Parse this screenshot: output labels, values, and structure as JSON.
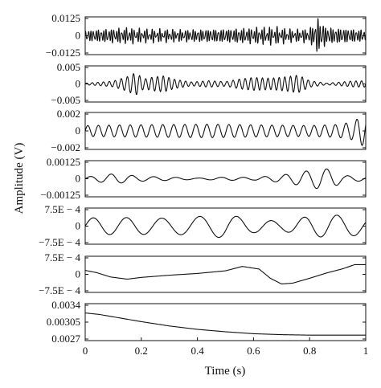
{
  "chart_data": {
    "type": "line",
    "title": "",
    "xlabel": "Time (s)",
    "ylabel": "Amplitude (V)",
    "x_ticks": [
      "0",
      "0.2",
      "0.4",
      "0.6",
      "0.8",
      "1"
    ],
    "xlim": [
      0,
      1
    ],
    "grid": false,
    "legend": "none",
    "panels": [
      {
        "ytick_labels": [
          "0.0125",
          "0",
          "−0.0125"
        ],
        "ytick_values": [
          0.0125,
          0,
          -0.0125
        ],
        "ylim": [
          -0.0125,
          0.0125
        ],
        "shape": "dense",
        "freq": 110,
        "envelope": [
          [
            0,
            0.28
          ],
          [
            0.15,
            0.4
          ],
          [
            0.2,
            0.34
          ],
          [
            0.35,
            0.3
          ],
          [
            0.5,
            0.34
          ],
          [
            0.67,
            0.44
          ],
          [
            0.75,
            0.3
          ],
          [
            0.8,
            0.35
          ],
          [
            0.83,
            0.9
          ],
          [
            0.86,
            0.42
          ],
          [
            0.95,
            0.34
          ],
          [
            1,
            0.3
          ]
        ]
      },
      {
        "ytick_labels": [
          "0.005",
          "0",
          "−0.005"
        ],
        "ytick_values": [
          0.005,
          0,
          -0.005
        ],
        "ylim": [
          -0.005,
          0.005
        ],
        "shape": "modulated",
        "freq": 48,
        "envelope": [
          [
            0,
            0.05
          ],
          [
            0.06,
            0.12
          ],
          [
            0.1,
            0.18
          ],
          [
            0.15,
            0.45
          ],
          [
            0.18,
            0.7
          ],
          [
            0.21,
            0.3
          ],
          [
            0.24,
            0.42
          ],
          [
            0.28,
            0.5
          ],
          [
            0.32,
            0.28
          ],
          [
            0.38,
            0.12
          ],
          [
            0.44,
            0.2
          ],
          [
            0.5,
            0.14
          ],
          [
            0.55,
            0.3
          ],
          [
            0.6,
            0.4
          ],
          [
            0.66,
            0.35
          ],
          [
            0.72,
            0.45
          ],
          [
            0.76,
            0.55
          ],
          [
            0.8,
            0.2
          ],
          [
            0.86,
            0.05
          ],
          [
            0.9,
            0.1
          ],
          [
            0.95,
            0.18
          ],
          [
            1,
            0.2
          ]
        ]
      },
      {
        "ytick_labels": [
          "0.002",
          "0",
          "−0.002"
        ],
        "ytick_values": [
          0.002,
          0,
          -0.002
        ],
        "ylim": [
          -0.002,
          0.002
        ],
        "shape": "tone",
        "freq": 26,
        "envelope": [
          [
            0,
            0.32
          ],
          [
            0.1,
            0.35
          ],
          [
            0.3,
            0.38
          ],
          [
            0.45,
            0.4
          ],
          [
            0.6,
            0.36
          ],
          [
            0.8,
            0.32
          ],
          [
            0.9,
            0.38
          ],
          [
            0.96,
            0.55
          ],
          [
            0.98,
            0.9
          ],
          [
            1,
            0.8
          ]
        ]
      },
      {
        "ytick_labels": [
          "0.00125",
          "0",
          "−0.00125"
        ],
        "ytick_values": [
          0.00125,
          0,
          -0.00125
        ],
        "ylim": [
          -0.00125,
          0.00125
        ],
        "shape": "tone",
        "freq": 13,
        "envelope": [
          [
            0,
            0.1
          ],
          [
            0.1,
            0.3
          ],
          [
            0.2,
            0.15
          ],
          [
            0.3,
            0.1
          ],
          [
            0.4,
            0.04
          ],
          [
            0.5,
            0.1
          ],
          [
            0.6,
            0.08
          ],
          [
            0.7,
            0.22
          ],
          [
            0.8,
            0.5
          ],
          [
            0.84,
            0.65
          ],
          [
            0.88,
            0.55
          ],
          [
            0.92,
            0.2
          ],
          [
            1,
            0.12
          ]
        ]
      },
      {
        "ytick_labels": [
          "7.5E − 4",
          "0",
          "−7.5E − 4"
        ],
        "ytick_values": [
          0.00075,
          0,
          -0.00075
        ],
        "ylim": [
          -0.00075,
          0.00075
        ],
        "shape": "tone",
        "freq": 8,
        "envelope": [
          [
            0,
            0.5
          ],
          [
            0.15,
            0.52
          ],
          [
            0.3,
            0.48
          ],
          [
            0.42,
            0.6
          ],
          [
            0.5,
            0.72
          ],
          [
            0.6,
            0.4
          ],
          [
            0.7,
            0.3
          ],
          [
            0.8,
            0.6
          ],
          [
            0.87,
            0.7
          ],
          [
            0.95,
            0.6
          ],
          [
            1,
            0.5
          ]
        ]
      },
      {
        "ytick_labels": [
          "7.5E − 4",
          "0",
          "−7.5E − 4"
        ],
        "ytick_values": [
          0.00075,
          0,
          -0.00075
        ],
        "ylim": [
          -0.00075,
          0.00075
        ],
        "shape": "curve",
        "points": [
          [
            0,
            0.00018
          ],
          [
            0.04,
            8e-05
          ],
          [
            0.09,
            -0.00012
          ],
          [
            0.15,
            -0.00022
          ],
          [
            0.2,
            -0.00014
          ],
          [
            0.3,
            -4e-05
          ],
          [
            0.4,
            4e-05
          ],
          [
            0.5,
            0.00016
          ],
          [
            0.56,
            0.00036
          ],
          [
            0.62,
            0.00024
          ],
          [
            0.66,
            -0.00018
          ],
          [
            0.7,
            -0.00044
          ],
          [
            0.74,
            -0.0004
          ],
          [
            0.8,
            -0.00018
          ],
          [
            0.86,
            6e-05
          ],
          [
            0.92,
            0.00026
          ],
          [
            0.96,
            0.00044
          ],
          [
            1,
            0.00044
          ]
        ]
      },
      {
        "ytick_labels": [
          "0.0034",
          "0.00305",
          "0.0027"
        ],
        "ytick_values": [
          0.0034,
          0.00305,
          0.0027
        ],
        "ylim": [
          0.0027,
          0.0034
        ],
        "shape": "curve",
        "points": [
          [
            0,
            0.00324
          ],
          [
            0.05,
            0.00321
          ],
          [
            0.1,
            0.00316
          ],
          [
            0.2,
            0.00306
          ],
          [
            0.3,
            0.00297
          ],
          [
            0.4,
            0.0029
          ],
          [
            0.5,
            0.00285
          ],
          [
            0.6,
            0.00281
          ],
          [
            0.7,
            0.00279
          ],
          [
            0.8,
            0.00278
          ],
          [
            0.9,
            0.00278
          ],
          [
            1,
            0.00278
          ]
        ]
      }
    ]
  }
}
